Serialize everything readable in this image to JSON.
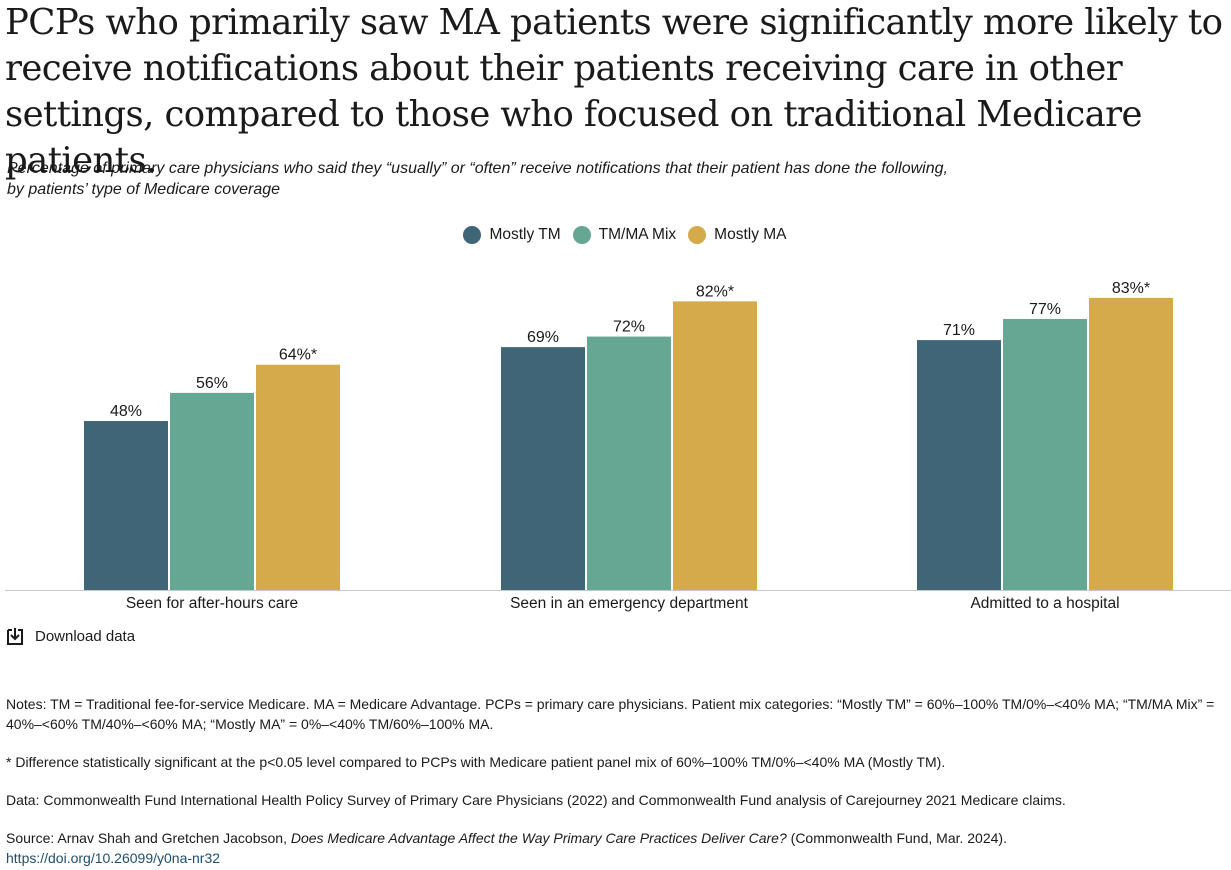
{
  "title": "PCPs who primarily saw MA patients were significantly more likely to receive notifications about their patients receiving care in other settings, compared to those who focused on traditional Medicare patients.",
  "subtitle_line1": "Percentage of primary care physicians who said they “usually” or “often” receive notifications that their patient has done the following,",
  "subtitle_line2": "by patients’ type of Medicare coverage",
  "download_label": "Download data",
  "notes": {
    "notes_text": "Notes: TM = Traditional fee-for-service Medicare. MA = Medicare Advantage. PCPs = primary care physicians. Patient mix categories: “Mostly TM” = 60%–100% TM/0%–<40% MA; “TM/MA Mix” = 40%–<60% TM/40%–<60% MA; “Mostly MA” = 0%–<40% TM/60%–100% MA.",
    "significance": "* Difference statistically significant at the p<0.05 level compared to PCPs with Medicare patient panel mix of 60%–100% TM/0%–<40% MA (Mostly TM).",
    "data": "Data: Commonwealth Fund International Health Policy Survey of Primary Care Physicians (2022) and Commonwealth Fund analysis of Carejourney 2021 Medicare claims.",
    "source_prefix": "Source: Arnav Shah and Gretchen Jacobson, ",
    "source_title": "Does Medicare Advantage Affect the Way Primary Care Practices Deliver Care?",
    "source_suffix": " (Commonwealth Fund, Mar. 2024).",
    "doi": "https://doi.org/10.26099/y0na-nr32"
  },
  "colors": {
    "mostly_tm": "#3f6577",
    "mix": "#66a794",
    "mostly_ma": "#d4aa4a",
    "axis": "#c8c8c8"
  },
  "chart_data": {
    "type": "bar",
    "categories": [
      "Seen for after-hours care",
      "Seen in an emergency department",
      "Admitted to a hospital"
    ],
    "series": [
      {
        "name": "Mostly TM",
        "color": "#3f6577",
        "values": [
          48,
          69,
          71
        ],
        "labels": [
          "48%",
          "69%",
          "71%"
        ]
      },
      {
        "name": "TM/MA Mix",
        "color": "#66a794",
        "values": [
          56,
          72,
          77
        ],
        "labels": [
          "56%",
          "72%",
          "77%"
        ]
      },
      {
        "name": "Mostly MA",
        "color": "#d4aa4a",
        "values": [
          64,
          82,
          83
        ],
        "labels": [
          "64%*",
          "82%*",
          "83%*"
        ]
      }
    ],
    "ylim": [
      0,
      100
    ],
    "grid": false,
    "legend_position": "top-center"
  }
}
